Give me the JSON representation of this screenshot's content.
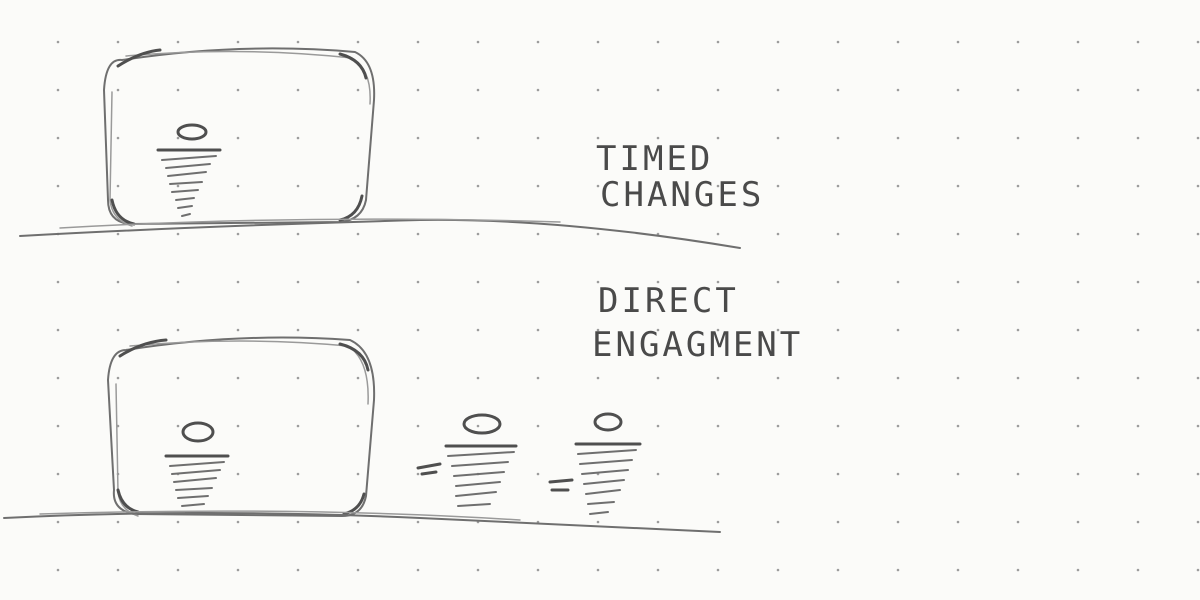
{
  "labels": {
    "top_line1": "TIMED",
    "top_line2": "CHANGES",
    "bottom_line1": "DIRECT",
    "bottom_line2": "ENGAGMENT"
  },
  "colors": {
    "paper": "#fbfbf9",
    "pencil": "#6f6f6f",
    "grid_dot": "#9c9c9c"
  }
}
